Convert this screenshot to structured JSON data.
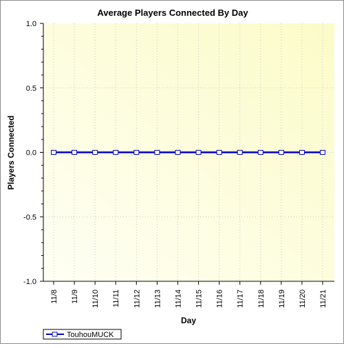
{
  "chart_data": {
    "type": "line",
    "title": "Average Players Connected By Day",
    "xlabel": "Day",
    "ylabel": "Players Connected",
    "categories": [
      "11/8",
      "11/9",
      "11/10",
      "11/11",
      "11/12",
      "11/13",
      "11/14",
      "11/15",
      "11/16",
      "11/17",
      "11/18",
      "11/19",
      "11/20",
      "11/21"
    ],
    "ylim": [
      -1.0,
      1.0
    ],
    "yticks": [
      "1.0",
      "0.5",
      "0.0",
      "-0.5",
      "-1.0"
    ],
    "grid": true,
    "legend_position": "bottom-left",
    "series": [
      {
        "name": "TouhouMUCK",
        "color": "#0000c8",
        "values": [
          0,
          0,
          0,
          0,
          0,
          0,
          0,
          0,
          0,
          0,
          0,
          0,
          0,
          0
        ]
      }
    ],
    "plot_background": [
      "#fffff4",
      "#fbfbc8"
    ]
  }
}
